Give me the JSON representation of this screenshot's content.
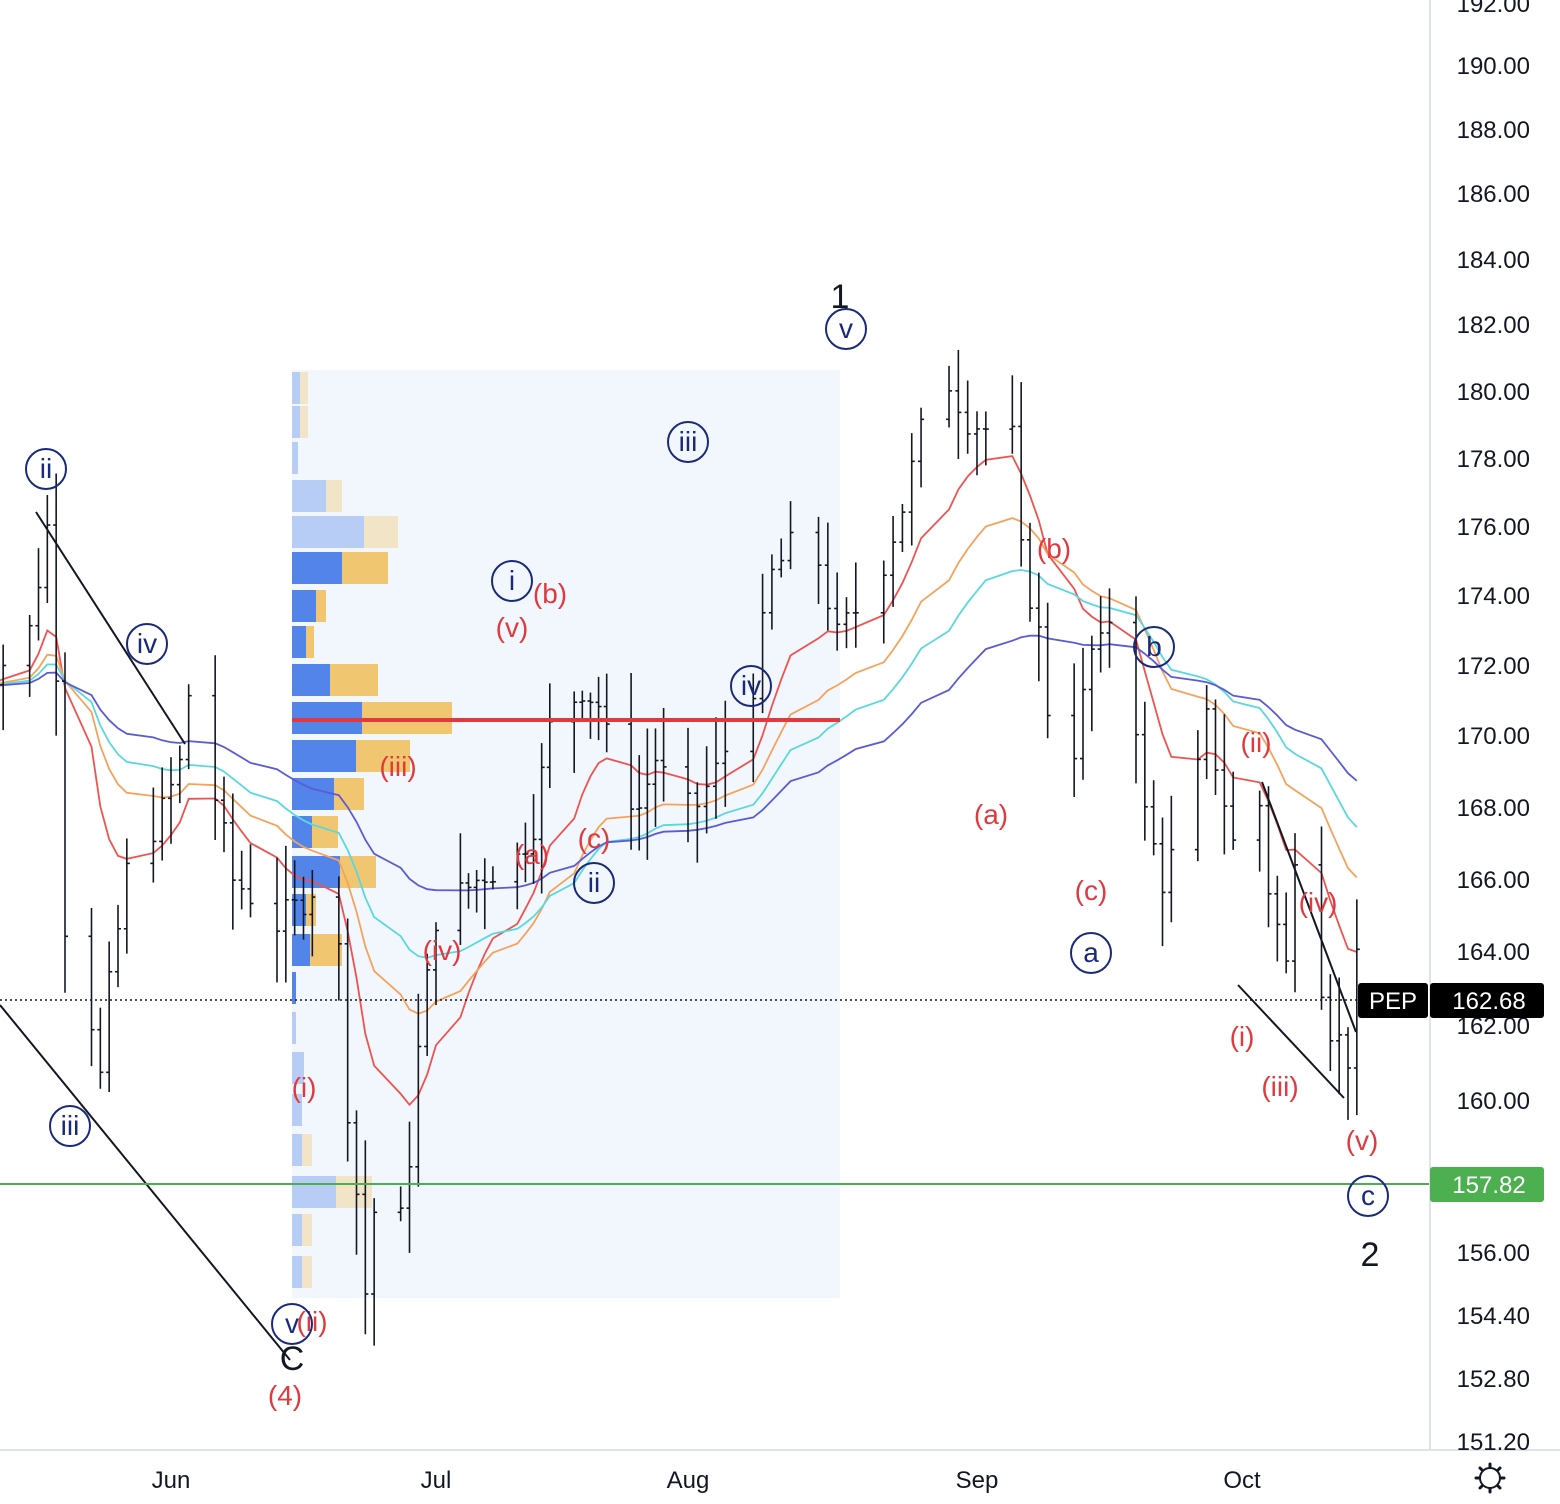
{
  "chart_data": {
    "type": "ohlc",
    "symbol": "PEP",
    "last_price": "162.68",
    "target_price": "157.82",
    "x_ticks": [
      "Jun",
      "Jul",
      "Aug",
      "Sep",
      "Oct"
    ],
    "y_ticks": [
      "192.00",
      "190.00",
      "188.00",
      "186.00",
      "184.00",
      "182.00",
      "180.00",
      "178.00",
      "176.00",
      "174.00",
      "172.00",
      "170.00",
      "168.00",
      "166.00",
      "164.00",
      "162.00",
      "160.00",
      "156.00",
      "154.40",
      "152.80",
      "151.20"
    ],
    "x_range": [
      "2022-05-10",
      "2022-10-30"
    ],
    "y_scale": "log",
    "y_range": [
      151.2,
      192.0
    ],
    "grid": false,
    "colors": {
      "bars": "#131722",
      "ma_fast": "#ef5350",
      "ma_mid": "#f5a35c",
      "ma_slow": "#5ad8e0",
      "ma_long": "#5b5bd6",
      "poc_line": "#e0393e",
      "target_line": "#4caf50",
      "target_tag": "#4caf50",
      "price_tag": "#000000",
      "wave_red": "#e0393e",
      "wave_blue": "#1a2a7a"
    },
    "price_series": [
      [
        "2022-05-10",
        171.4
      ],
      [
        "2022-05-13",
        172.1
      ],
      [
        "2022-05-16",
        173.0
      ],
      [
        "2022-05-18",
        176.0
      ],
      [
        "2022-05-19",
        172.0
      ],
      [
        "2022-05-20",
        164.8
      ],
      [
        "2022-05-23",
        162.2
      ],
      [
        "2022-05-24",
        160.6
      ],
      [
        "2022-05-25",
        163.0
      ],
      [
        "2022-05-27",
        166.2
      ],
      [
        "2022-05-31",
        167.9
      ],
      [
        "2022-06-02",
        169.2
      ],
      [
        "2022-06-03",
        171.2
      ],
      [
        "2022-06-06",
        168.3
      ],
      [
        "2022-06-08",
        166.0
      ],
      [
        "2022-06-10",
        165.6
      ],
      [
        "2022-06-13",
        164.8
      ],
      [
        "2022-06-15",
        165.2
      ],
      [
        "2022-06-17",
        165.8
      ],
      [
        "2022-06-20",
        164.0
      ],
      [
        "2022-06-21",
        159.9
      ],
      [
        "2022-06-22",
        157.6
      ],
      [
        "2022-06-23",
        155.0
      ],
      [
        "2022-06-24",
        157.1
      ],
      [
        "2022-06-27",
        156.8
      ],
      [
        "2022-06-28",
        158.6
      ],
      [
        "2022-06-29",
        161.3
      ],
      [
        "2022-06-30",
        163.2
      ],
      [
        "2022-07-01",
        165.0
      ],
      [
        "2022-07-05",
        165.8
      ],
      [
        "2022-07-07",
        166.2
      ],
      [
        "2022-07-11",
        166.6
      ],
      [
        "2022-07-13",
        167.6
      ],
      [
        "2022-07-15",
        170.2
      ],
      [
        "2022-07-19",
        171.4
      ],
      [
        "2022-07-21",
        170.9
      ],
      [
        "2022-07-23",
        169.0
      ],
      [
        "2022-07-26",
        168.0
      ],
      [
        "2022-07-28",
        169.4
      ],
      [
        "2022-07-31",
        167.8
      ],
      [
        "2022-08-02",
        168.1
      ],
      [
        "2022-08-04",
        169.0
      ],
      [
        "2022-08-08",
        171.5
      ],
      [
        "2022-08-10",
        174.6
      ],
      [
        "2022-08-12",
        175.4
      ],
      [
        "2022-08-15",
        175.0
      ],
      [
        "2022-08-17",
        172.8
      ],
      [
        "2022-08-19",
        173.6
      ],
      [
        "2022-08-22",
        175.0
      ],
      [
        "2022-08-24",
        176.6
      ],
      [
        "2022-08-26",
        178.8
      ],
      [
        "2022-08-27",
        180.5
      ],
      [
        "2022-08-29",
        180.3
      ],
      [
        "2022-08-31",
        179.2
      ],
      [
        "2022-09-02",
        178.9
      ],
      [
        "2022-09-05",
        178.6
      ],
      [
        "2022-09-06",
        175.2
      ],
      [
        "2022-09-08",
        172.9
      ],
      [
        "2022-09-09",
        170.8
      ],
      [
        "2022-09-12",
        169.7
      ],
      [
        "2022-09-14",
        172.4
      ],
      [
        "2022-09-15",
        172.5
      ],
      [
        "2022-09-16",
        173.4
      ],
      [
        "2022-09-19",
        170.4
      ],
      [
        "2022-09-20",
        167.8
      ],
      [
        "2022-09-22",
        166.0
      ],
      [
        "2022-09-24",
        167.2
      ],
      [
        "2022-09-26",
        169.0
      ],
      [
        "2022-09-27",
        170.4
      ],
      [
        "2022-09-29",
        168.2
      ],
      [
        "2022-09-30",
        167.0
      ],
      [
        "2022-10-03",
        168.1
      ],
      [
        "2022-10-04",
        165.8
      ],
      [
        "2022-10-06",
        163.6
      ],
      [
        "2022-10-07",
        166.9
      ],
      [
        "2022-10-09",
        164.5
      ],
      [
        "2022-10-11",
        162.0
      ],
      [
        "2022-10-13",
        161.2
      ],
      [
        "2022-10-14",
        163.6
      ],
      [
        "2022-10-16",
        162.7
      ]
    ],
    "annotations_red": [
      "(b)",
      "(v)",
      "(iii)",
      "(a)",
      "(c)",
      "(iv)",
      "(i)",
      "(ii)",
      "(4)",
      "(b)",
      "(a)",
      "(c)",
      "(ii)",
      "(iv)",
      "(i)",
      "(iii)",
      "(v)"
    ],
    "annotations_blue": [
      "ii",
      "iv",
      "iii",
      "v",
      "i",
      "ii",
      "iii",
      "iv",
      "v",
      "a",
      "b",
      "c"
    ],
    "annotations_black": [
      "1",
      "C",
      "2"
    ]
  }
}
